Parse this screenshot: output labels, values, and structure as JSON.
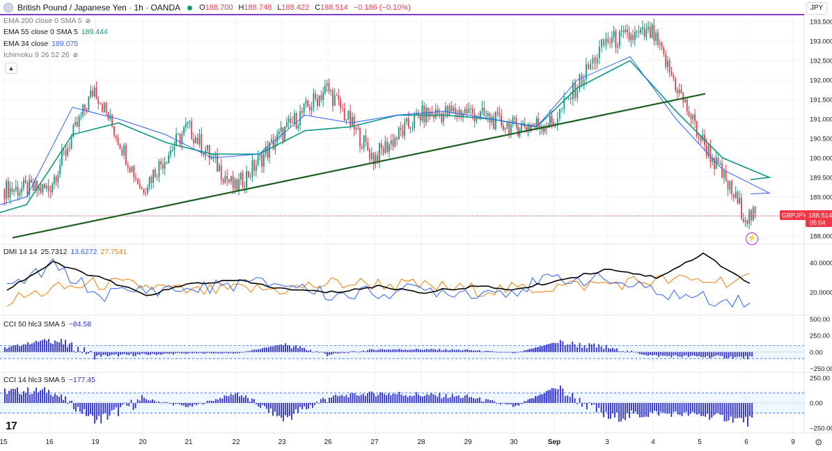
{
  "header": {
    "symbol_title": "British Pound / Japanese Yen · 1h · OANDA",
    "open_label": "O",
    "open": "188.700",
    "high_label": "H",
    "high": "188.748",
    "low_label": "L",
    "low": "188.422",
    "close_label": "C",
    "close": "188.514",
    "change": "−0.186 (−0.10%)"
  },
  "currency_button": "JPY",
  "indicators": [
    {
      "name": "EMA 200 close 0 SMA 5",
      "value": "",
      "hidden": true
    },
    {
      "name": "EMA 55 close 0 SMA 5",
      "value": "189.444",
      "color": "#089981"
    },
    {
      "name": "EMA 34 close",
      "value": "189.075",
      "color": "#2962ff"
    },
    {
      "name": "Ichimoku 9 26 52 26",
      "value": "",
      "hidden": true
    }
  ],
  "price_axis": {
    "ticks": [
      "193.500",
      "193.000",
      "192.500",
      "192.000",
      "191.500",
      "191.000",
      "190.500",
      "190.000",
      "189.500",
      "189.000",
      "188.500",
      "188.000"
    ],
    "current_symbol": "GBPJPY",
    "current_price": "188.514",
    "countdown": "05:04"
  },
  "time_axis": [
    "15",
    "16",
    "19",
    "20",
    "21",
    "22",
    "23",
    "26",
    "27",
    "28",
    "29",
    "30",
    "Sep",
    "3",
    "4",
    "5",
    "6",
    "9"
  ],
  "dmi": {
    "label": "DMI 14 14",
    "adx": "25.7312",
    "plus_di": "13.6272",
    "minus_di": "27.7541",
    "ticks": [
      "40.0000",
      "20.0000"
    ]
  },
  "cci50": {
    "label": "CCI 50 hlc3 SMA 5",
    "value": "−84.58",
    "ticks": [
      "500.00",
      "250.00",
      "0.00",
      "−250.00"
    ]
  },
  "cci14": {
    "label": "CCI 14 hlc3 SMA 5",
    "value": "−177.45",
    "ticks": [
      "250.00",
      "0.00",
      "−250.00"
    ]
  },
  "logo": "17",
  "colors": {
    "up": "#089981",
    "down": "#f23645",
    "ema55": "#089981",
    "ema34": "#2962ff",
    "trendline": "#1b5e20",
    "dmi_plus": "#2962ff",
    "dmi_minus": "#f57c00",
    "adx": "#000000",
    "cci": "#2b2bd9",
    "purple_line": "#7e3fbf"
  },
  "chart_data": [
    {
      "type": "candlestick",
      "title": "British Pound / Japanese Yen · 1h · OANDA",
      "x": [
        "15",
        "16",
        "19",
        "20",
        "21",
        "22",
        "23",
        "26",
        "27",
        "28",
        "29",
        "30",
        "Sep",
        "3",
        "4",
        "5",
        "6"
      ],
      "series": [
        {
          "name": "EMA 55 close 0 SMA 5",
          "values": [
            188.8,
            190.6,
            190.9,
            190.4,
            190.1,
            190.1,
            190.7,
            190.8,
            191.1,
            191.1,
            191.0,
            190.8,
            191.8,
            192.5,
            191.2,
            190.0,
            189.5
          ]
        },
        {
          "name": "EMA 34 close",
          "values": [
            189.0,
            191.3,
            191.0,
            190.6,
            190.0,
            190.1,
            191.1,
            190.9,
            191.1,
            191.2,
            191.0,
            190.8,
            192.0,
            192.6,
            191.0,
            189.7,
            189.1
          ]
        }
      ],
      "close": [
        189.2,
        191.8,
        189.2,
        190.8,
        189.2,
        190.6,
        191.8,
        190.0,
        191.1,
        191.2,
        190.8,
        190.9,
        193.0,
        193.2,
        190.6,
        188.5,
        188.5
      ],
      "ylim": [
        187.8,
        193.7
      ],
      "current_price": 188.514,
      "ema55_last": 189.444,
      "ema34_last": 189.075
    },
    {
      "type": "line",
      "title": "DMI 14 14",
      "x": [
        "15",
        "16",
        "19",
        "20",
        "21",
        "22",
        "23",
        "26",
        "27",
        "28",
        "29",
        "30",
        "Sep",
        "3",
        "4",
        "5",
        "6"
      ],
      "series": [
        {
          "name": "ADX",
          "values": [
            22,
            40,
            30,
            18,
            26,
            28,
            22,
            20,
            24,
            20,
            24,
            22,
            28,
            36,
            30,
            46,
            26
          ]
        },
        {
          "name": "+DI",
          "values": [
            22,
            38,
            18,
            22,
            22,
            26,
            26,
            18,
            20,
            22,
            20,
            22,
            30,
            28,
            20,
            16,
            14
          ]
        },
        {
          "name": "-DI",
          "values": [
            14,
            22,
            26,
            24,
            20,
            22,
            22,
            26,
            26,
            24,
            22,
            22,
            24,
            26,
            28,
            28,
            28
          ]
        }
      ],
      "adx_last": 25.7312,
      "plus_di_last": 13.6272,
      "minus_di_last": 27.7541
    },
    {
      "type": "bar",
      "title": "CCI 50 hlc3 SMA 5",
      "x": [
        "15",
        "16",
        "19",
        "20",
        "21",
        "22",
        "23",
        "26",
        "27",
        "28",
        "29",
        "30",
        "Sep",
        "3",
        "4",
        "5",
        "6"
      ],
      "values": [
        60,
        200,
        -60,
        -40,
        -20,
        -20,
        120,
        -40,
        40,
        40,
        30,
        -20,
        150,
        60,
        -60,
        -70,
        -84.58
      ],
      "ylim": [
        -300,
        550
      ]
    },
    {
      "type": "bar",
      "title": "CCI 14 hlc3 SMA 5",
      "x": [
        "15",
        "16",
        "19",
        "20",
        "21",
        "22",
        "23",
        "26",
        "27",
        "28",
        "29",
        "30",
        "Sep",
        "3",
        "4",
        "5",
        "6"
      ],
      "values": [
        120,
        120,
        -180,
        40,
        -40,
        100,
        -160,
        60,
        100,
        80,
        60,
        -40,
        160,
        -150,
        -100,
        -120,
        -177.45
      ],
      "ylim": [
        -300,
        300
      ]
    }
  ]
}
